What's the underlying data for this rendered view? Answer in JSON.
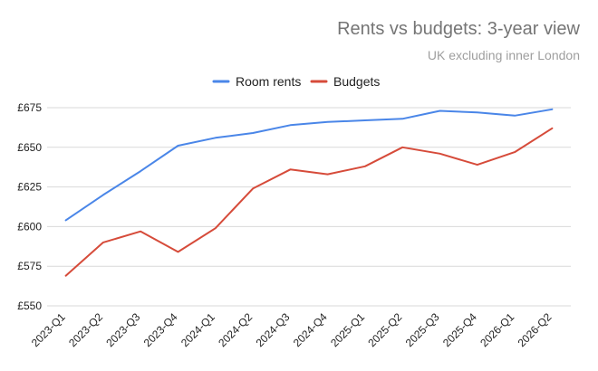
{
  "chart_data": {
    "type": "line",
    "title": "Rents vs budgets: 3-year view",
    "subtitle": "UK excluding inner London",
    "xlabel": "",
    "ylabel": "",
    "categories": [
      "2023-Q1",
      "2023-Q2",
      "2023-Q3",
      "2023-Q4",
      "2024-Q1",
      "2024-Q2",
      "2024-Q3",
      "2024-Q4",
      "2025-Q1",
      "2025-Q2",
      "2025-Q3",
      "2025-Q4",
      "2026-Q1",
      "2026-Q2"
    ],
    "ylim": [
      550,
      675
    ],
    "yticks": [
      550,
      575,
      600,
      625,
      650,
      675
    ],
    "ytick_labels": [
      "£550",
      "£575",
      "£600",
      "£625",
      "£650",
      "£675"
    ],
    "grid": true,
    "legend_position": "top",
    "series": [
      {
        "name": "Room rents",
        "color": "#4a86e8",
        "values": [
          604,
          620,
          635,
          651,
          656,
          659,
          664,
          666,
          667,
          668,
          673,
          672,
          670,
          674
        ]
      },
      {
        "name": "Budgets",
        "color": "#d64b3a",
        "values": [
          569,
          590,
          597,
          584,
          599,
          624,
          636,
          633,
          638,
          650,
          646,
          639,
          647,
          662
        ]
      }
    ]
  }
}
